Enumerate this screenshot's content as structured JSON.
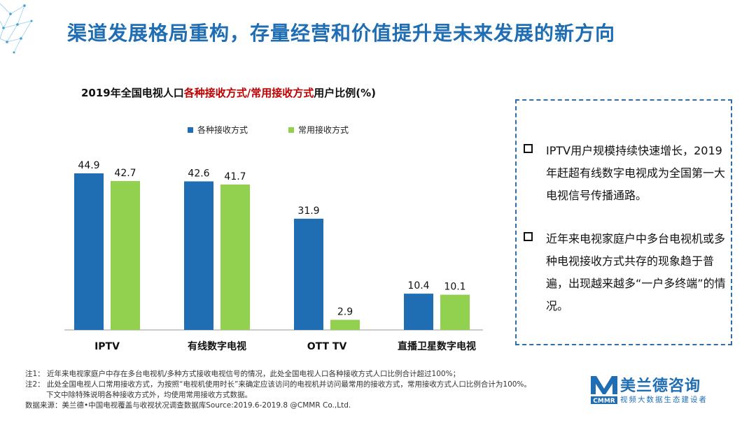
{
  "main_title": "渠道发展格局重构，存量经营和价值提升是未来发展的新方向",
  "chart_title": {
    "prefix": "2019年全国电视人口",
    "highlight": "各种接收方式/常用接收方式",
    "suffix": "用户比例(%)"
  },
  "chart_data": {
    "type": "bar",
    "categories": [
      "IPTV",
      "有线数字电视",
      "OTT TV",
      "直播卫星数字电视"
    ],
    "series": [
      {
        "name": "各种接收方式",
        "values": [
          44.9,
          42.6,
          31.9,
          10.4
        ],
        "color": "#1f6db3"
      },
      {
        "name": "常用接收方式",
        "values": [
          42.7,
          41.7,
          2.9,
          10.1
        ],
        "color": "#92d050"
      }
    ],
    "ylim": [
      0,
      50
    ],
    "grid": false,
    "legend": "top"
  },
  "callout": {
    "bullets": [
      "IPTV用户规模持续快速增长，2019年赶超有线数字电视成为全国第一大电视信号传播通路。",
      "近年来电视家庭户中多台电视机或多种电视接收方式共存的现象趋于普遍，出现越来越多“一户多终端”的情况。"
    ]
  },
  "notes": {
    "note1": "注1：  近年来电视家庭户中存在多台电视机/多种方式接收电视信号的情况，此处全国电视人口各种接收方式人口比例合计超过100%；",
    "note2": "注2：  此处全国电视人口常用接收方式，为按照“电视机使用时长”来确定应该访问的电视机并访问最常用的接收方式，常用接收方式人口比例合计为100%。",
    "note3": "下文中除特殊说明各种接收方式外，均使用常用接收方式数据。",
    "source": "数据来源：美兰德•中国电视覆盖与收视状况调查数据库Source:2019.6-2019.8 @CMMR Co.,Ltd."
  },
  "logo": {
    "name": "美兰德咨询",
    "abbr": "CMMR",
    "tagline": "视频大数据生态建设者"
  },
  "colors": {
    "accent": "#1f6db3",
    "highlight": "#c00000",
    "series1": "#1f6db3",
    "series2": "#92d050"
  }
}
